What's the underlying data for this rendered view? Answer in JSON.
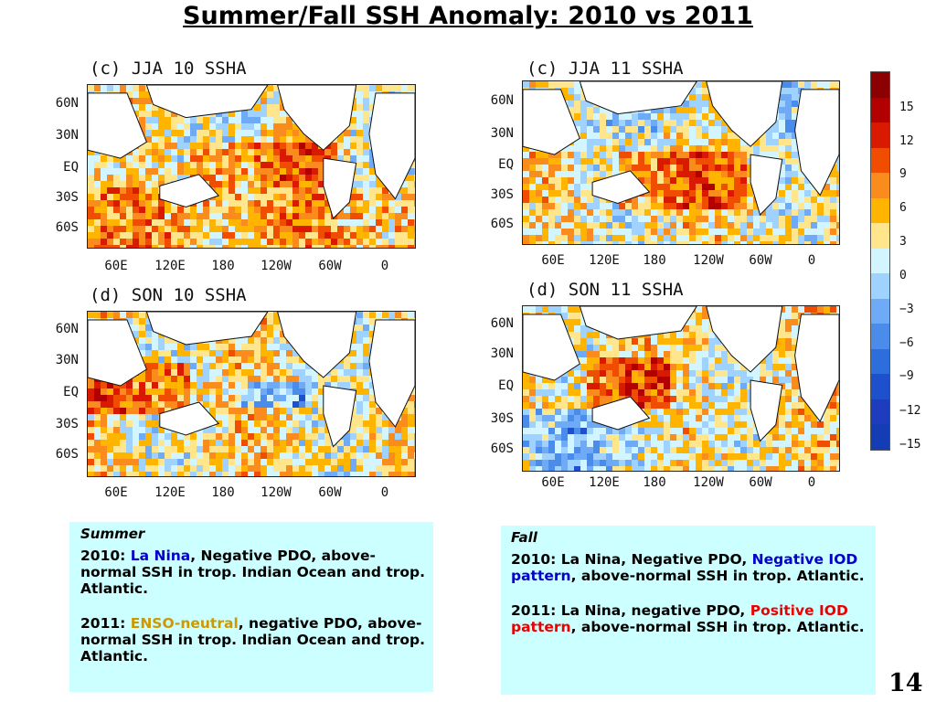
{
  "slide": {
    "title": "Summer/Fall SSH Anomaly: 2010 vs 2011",
    "page_number": "14"
  },
  "panels": [
    {
      "id": "jja10",
      "title": "(c) JJA 10 SSHA",
      "lat_labels": [
        "60N",
        "30N",
        "EQ",
        "30S",
        "60S"
      ],
      "lon_labels": [
        "60E",
        "120E",
        "180",
        "120W",
        "60W",
        "0"
      ]
    },
    {
      "id": "jja11",
      "title": "(c) JJA 11 SSHA",
      "lat_labels": [
        "60N",
        "30N",
        "EQ",
        "30S",
        "60S"
      ],
      "lon_labels": [
        "60E",
        "120E",
        "180",
        "120W",
        "60W",
        "0"
      ]
    },
    {
      "id": "son10",
      "title": "(d) SON 10 SSHA",
      "lat_labels": [
        "60N",
        "30N",
        "EQ",
        "30S",
        "60S"
      ],
      "lon_labels": [
        "60E",
        "120E",
        "180",
        "120W",
        "60W",
        "0"
      ]
    },
    {
      "id": "son11",
      "title": "(d) SON 11 SSHA",
      "lat_labels": [
        "60N",
        "30N",
        "EQ",
        "30S",
        "60S"
      ],
      "lon_labels": [
        "60E",
        "120E",
        "180",
        "120W",
        "60W",
        "0"
      ]
    }
  ],
  "colorbar": {
    "colors": [
      "#8b0000",
      "#b20000",
      "#d91a00",
      "#f04d00",
      "#fa8c1e",
      "#ffb400",
      "#ffe68c",
      "#d2f5ff",
      "#a0d2ff",
      "#6eaaf5",
      "#4b8ceb",
      "#2d6edc",
      "#1e50cd",
      "#1e3cbe",
      "#143cb4"
    ],
    "labels": [
      "15",
      "12",
      "9",
      "6",
      "3",
      "0",
      "−3",
      "−6",
      "−9",
      "−12",
      "−15"
    ]
  },
  "summer_box": {
    "heading": "Summer",
    "p1_year": "2010: ",
    "p1_highlight": "La Nina",
    "p1_rest": ", Negative PDO, above-normal SSH in trop. Indian Ocean and trop. Atlantic.",
    "p2_year": "2011: ",
    "p2_highlight": "ENSO-neutral",
    "p2_rest": ", negative PDO, above-normal SSH in trop. Indian Ocean and trop. Atlantic."
  },
  "fall_box": {
    "heading": "Fall",
    "p1_prefix": "2010: La Nina, Negative PDO, ",
    "p1_highlight": "Negative IOD pattern",
    "p1_rest": ", above-normal SSH in trop. Atlantic.",
    "p2_prefix": "2011: La Nina, negative PDO, ",
    "p2_highlight": "Positive IOD pattern",
    "p2_rest": ", above-normal SSH in trop. Atlantic."
  }
}
